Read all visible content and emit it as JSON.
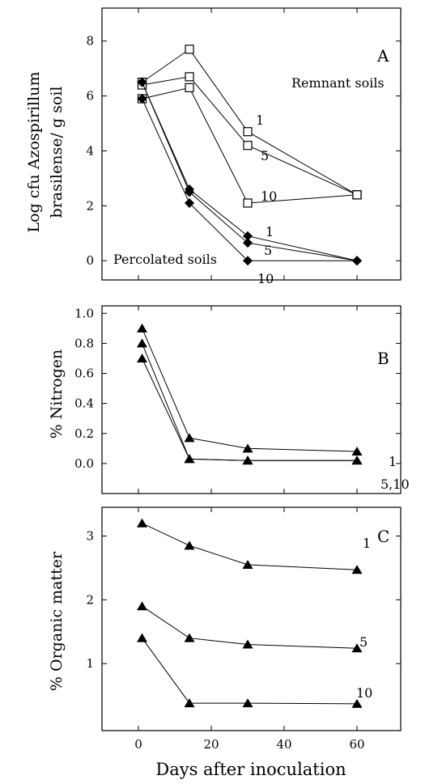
{
  "chart_data": [
    {
      "panel": "A",
      "type": "line",
      "ylabel_line1": "Log cfu Azospirillum",
      "ylabel_line2": "brasilense/ g soil",
      "ylim": [
        -0.7,
        9.2
      ],
      "yticks": [
        0,
        2,
        4,
        6,
        8
      ],
      "xlim": [
        -10,
        72
      ],
      "annotations": [
        "Remnant soils",
        "Percolated soils"
      ],
      "series": [
        {
          "name": "1",
          "group": "Remnant soils",
          "marker": "open-square",
          "x": [
            1,
            14,
            30,
            60
          ],
          "y": [
            6.5,
            7.7,
            4.7,
            2.4
          ]
        },
        {
          "name": "5",
          "group": "Remnant soils",
          "marker": "open-square",
          "x": [
            1,
            14,
            30,
            60
          ],
          "y": [
            6.4,
            6.7,
            4.2,
            2.4
          ]
        },
        {
          "name": "10",
          "group": "Remnant soils",
          "marker": "open-square",
          "x": [
            1,
            14,
            30,
            60
          ],
          "y": [
            5.9,
            6.3,
            2.1,
            2.4
          ]
        },
        {
          "name": "1",
          "group": "Percolated soils",
          "marker": "filled-diamond",
          "x": [
            1,
            14,
            30,
            60
          ],
          "y": [
            6.5,
            2.6,
            0.9,
            0.0
          ]
        },
        {
          "name": "5",
          "group": "Percolated soils",
          "marker": "filled-diamond",
          "x": [
            1,
            14,
            30,
            60
          ],
          "y": [
            6.5,
            2.5,
            0.65,
            0.0
          ]
        },
        {
          "name": "10",
          "group": "Percolated soils",
          "marker": "filled-diamond",
          "x": [
            1,
            14,
            30,
            60
          ],
          "y": [
            5.9,
            2.1,
            0.0,
            0.0
          ]
        }
      ]
    },
    {
      "panel": "B",
      "type": "line",
      "ylabel": "% Nitrogen",
      "ylim": [
        -0.2,
        1.05
      ],
      "yticks": [
        "0.0",
        "0.2",
        "0.4",
        "0.6",
        "0.8",
        "1.0"
      ],
      "xlim": [
        -10,
        72
      ],
      "series": [
        {
          "name": "1",
          "marker": "filled-triangle",
          "x": [
            1,
            14,
            30,
            60
          ],
          "y": [
            0.9,
            0.17,
            0.1,
            0.08
          ]
        },
        {
          "name": "5",
          "marker": "filled-triangle",
          "x": [
            1,
            14,
            30,
            60
          ],
          "y": [
            0.8,
            0.03,
            0.02,
            0.02
          ]
        },
        {
          "name": "10",
          "marker": "filled-triangle",
          "x": [
            1,
            14,
            30,
            60
          ],
          "y": [
            0.7,
            0.03,
            0.02,
            0.02
          ]
        }
      ],
      "end_labels": [
        "1",
        "5,10"
      ]
    },
    {
      "panel": "C",
      "type": "line",
      "ylabel": "% Organic matter",
      "xlabel": "Days after inoculation",
      "ylim": [
        -0.05,
        3.45
      ],
      "yticks": [
        1,
        2,
        3
      ],
      "xlim": [
        -10,
        72
      ],
      "xticks": [
        0,
        20,
        40,
        60
      ],
      "series": [
        {
          "name": "1",
          "marker": "filled-triangle",
          "x": [
            1,
            14,
            30,
            60
          ],
          "y": [
            3.2,
            2.85,
            2.55,
            2.47
          ]
        },
        {
          "name": "5",
          "marker": "filled-triangle",
          "x": [
            1,
            14,
            30,
            60
          ],
          "y": [
            1.9,
            1.4,
            1.3,
            1.24
          ]
        },
        {
          "name": "10",
          "marker": "filled-triangle",
          "x": [
            1,
            14,
            30,
            60
          ],
          "y": [
            1.4,
            0.38,
            0.38,
            0.37
          ]
        }
      ]
    }
  ]
}
